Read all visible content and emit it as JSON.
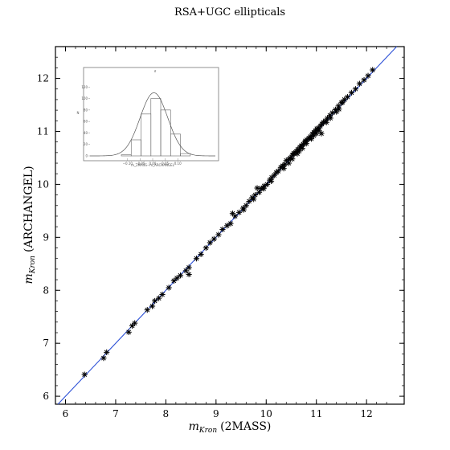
{
  "chart_data": [
    {
      "type": "scatter",
      "title": "RSA+UGC ellipticals",
      "xlabel_math": "m",
      "xlabel_sub": "Kron",
      "xlabel_text": "(2MASS)",
      "ylabel_math": "m",
      "ylabel_sub": "Kron",
      "ylabel_text": "(ARCHANGEL)",
      "xlim": [
        5.8,
        12.75
      ],
      "ylim": [
        5.85,
        12.6
      ],
      "xticks": [
        "6",
        "7",
        "8",
        "9",
        "10",
        "11",
        "12"
      ],
      "yticks": [
        "6",
        "7",
        "8",
        "9",
        "10",
        "11",
        "12"
      ],
      "marker": "asterisk",
      "marker_color": "#000000",
      "line_color": "#2b4fd6",
      "reference_line": {
        "x": [
          5.8,
          12.75
        ],
        "y": [
          5.8,
          12.75
        ]
      },
      "points": [
        [
          6.38,
          6.41
        ],
        [
          6.76,
          6.72
        ],
        [
          6.82,
          6.83
        ],
        [
          7.26,
          7.21
        ],
        [
          7.33,
          7.33
        ],
        [
          7.38,
          7.38
        ],
        [
          7.63,
          7.63
        ],
        [
          7.73,
          7.7
        ],
        [
          7.78,
          7.8
        ],
        [
          7.86,
          7.85
        ],
        [
          7.93,
          7.92
        ],
        [
          8.06,
          8.05
        ],
        [
          8.16,
          8.18
        ],
        [
          8.22,
          8.23
        ],
        [
          8.29,
          8.28
        ],
        [
          8.4,
          8.37
        ],
        [
          8.46,
          8.3
        ],
        [
          8.46,
          8.43
        ],
        [
          8.61,
          8.6
        ],
        [
          8.7,
          8.68
        ],
        [
          8.8,
          8.8
        ],
        [
          8.88,
          8.9
        ],
        [
          8.96,
          8.97
        ],
        [
          9.05,
          9.05
        ],
        [
          9.13,
          9.15
        ],
        [
          9.22,
          9.22
        ],
        [
          9.29,
          9.26
        ],
        [
          9.33,
          9.45
        ],
        [
          9.38,
          9.4
        ],
        [
          9.46,
          9.47
        ],
        [
          9.54,
          9.55
        ],
        [
          9.6,
          9.6
        ],
        [
          9.66,
          9.68
        ],
        [
          9.72,
          9.75
        ],
        [
          9.78,
          9.8
        ],
        [
          9.82,
          9.93
        ],
        [
          9.86,
          9.85
        ],
        [
          9.9,
          9.92
        ],
        [
          9.96,
          9.97
        ],
        [
          10.02,
          10.0
        ],
        [
          10.07,
          10.08
        ],
        [
          10.11,
          10.13
        ],
        [
          10.16,
          10.17
        ],
        [
          10.2,
          10.22
        ],
        [
          10.24,
          10.25
        ],
        [
          10.29,
          10.32
        ],
        [
          10.33,
          10.35
        ],
        [
          10.37,
          10.38
        ],
        [
          10.4,
          10.45
        ],
        [
          10.45,
          10.47
        ],
        [
          10.48,
          10.5
        ],
        [
          10.52,
          10.55
        ],
        [
          10.56,
          10.58
        ],
        [
          10.6,
          10.62
        ],
        [
          10.63,
          10.66
        ],
        [
          10.67,
          10.7
        ],
        [
          10.7,
          10.73
        ],
        [
          10.74,
          10.76
        ],
        [
          10.78,
          10.8
        ],
        [
          10.81,
          10.84
        ],
        [
          10.85,
          10.87
        ],
        [
          10.88,
          10.9
        ],
        [
          10.92,
          10.95
        ],
        [
          10.95,
          10.98
        ],
        [
          10.98,
          11.01
        ],
        [
          11.01,
          11.05
        ],
        [
          11.04,
          11.06
        ],
        [
          11.08,
          11.1
        ],
        [
          11.11,
          11.14
        ],
        [
          11.14,
          11.17
        ],
        [
          11.18,
          11.2
        ],
        [
          11.22,
          11.25
        ],
        [
          11.27,
          11.3
        ],
        [
          11.32,
          11.35
        ],
        [
          11.38,
          11.41
        ],
        [
          11.44,
          11.48
        ],
        [
          11.5,
          11.54
        ],
        [
          11.56,
          11.6
        ],
        [
          11.62,
          11.65
        ],
        [
          11.7,
          11.73
        ],
        [
          11.78,
          11.8
        ],
        [
          11.86,
          11.9
        ],
        [
          11.95,
          11.97
        ],
        [
          12.03,
          12.05
        ],
        [
          12.12,
          12.16
        ],
        [
          10.52,
          10.48
        ],
        [
          10.66,
          10.63
        ],
        [
          10.8,
          10.77
        ],
        [
          10.95,
          10.92
        ],
        [
          11.05,
          11.02
        ],
        [
          11.1,
          10.96
        ],
        [
          10.1,
          10.06
        ],
        [
          9.95,
          9.92
        ],
        [
          10.35,
          10.3
        ],
        [
          10.45,
          10.4
        ],
        [
          10.72,
          10.68
        ],
        [
          10.9,
          10.86
        ],
        [
          11.2,
          11.17
        ],
        [
          11.4,
          11.37
        ],
        [
          9.55,
          9.52
        ],
        [
          9.75,
          9.72
        ],
        [
          10.55,
          10.59
        ],
        [
          10.62,
          10.58
        ],
        [
          10.78,
          10.82
        ],
        [
          11.0,
          10.96
        ],
        [
          11.28,
          11.25
        ],
        [
          11.45,
          11.42
        ],
        [
          11.52,
          11.55
        ]
      ]
    },
    {
      "type": "histogram",
      "inset_top_label": "σ",
      "xlabel": "m_2MASS−m_ARCHANGEL",
      "ylabel": "N",
      "xlim": [
        -0.25,
        0.25
      ],
      "ylim": [
        0,
        140
      ],
      "xticks": [
        "−0.10",
        "−0.05",
        "0.00",
        "0.05",
        "0.10"
      ],
      "yticks": [
        "0",
        "20",
        "40",
        "60",
        "80",
        "100",
        "120"
      ],
      "bins": [
        {
          "x0": -0.125,
          "x1": -0.0857,
          "n": 2
        },
        {
          "x0": -0.0857,
          "x1": -0.0464,
          "n": 28
        },
        {
          "x0": -0.0464,
          "x1": -0.0071,
          "n": 73
        },
        {
          "x0": -0.0071,
          "x1": 0.0321,
          "n": 100
        },
        {
          "x0": 0.0321,
          "x1": 0.0714,
          "n": 80
        },
        {
          "x0": 0.0714,
          "x1": 0.1107,
          "n": 38
        },
        {
          "x0": 0.1107,
          "x1": 0.15,
          "n": 4
        }
      ],
      "gaussian": {
        "mean": 0.005,
        "sigma": 0.055,
        "peak": 110
      }
    }
  ]
}
